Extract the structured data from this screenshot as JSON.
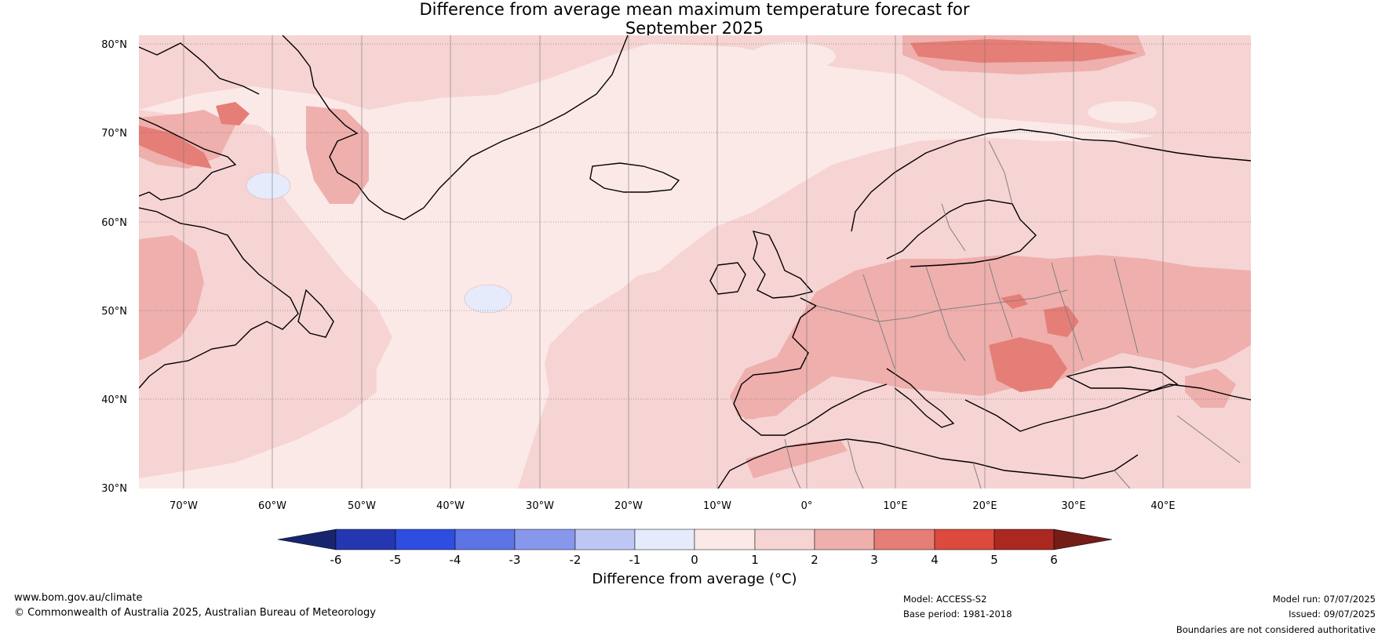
{
  "title": {
    "line1": "Difference from average mean maximum temperature forecast for",
    "line2": "September 2025"
  },
  "map": {
    "lat_labels": [
      "80°N",
      "70°N",
      "60°N",
      "50°N",
      "40°N",
      "30°N"
    ],
    "lon_labels": [
      "70°W",
      "60°W",
      "50°W",
      "40°W",
      "30°W",
      "20°W",
      "10°W",
      "0°",
      "10°E",
      "20°E",
      "30°E",
      "40°E"
    ],
    "lat_range": [
      30,
      81
    ],
    "lon_range": [
      -75,
      50
    ],
    "coastline_color": "#000000",
    "border_color": "#808080"
  },
  "colorbar": {
    "title": "Difference from average (°C)",
    "ticks": [
      "-6",
      "-5",
      "-4",
      "-3",
      "-2",
      "-1",
      "0",
      "1",
      "2",
      "3",
      "4",
      "5",
      "6"
    ],
    "colors": {
      "below_-6": "#17256e",
      "-6_-5": "#2537b0",
      "-5_-4": "#2f4ddf",
      "-4_-3": "#5c74e6",
      "-3_-2": "#8798ec",
      "-2_-1": "#bec7f4",
      "-1_0": "#e6ebfb",
      "0_1": "#fbe9e8",
      "1_2": "#f6d4d3",
      "2_3": "#eeafad",
      "3_4": "#e57e77",
      "4_5": "#dc4a3d",
      "5_6": "#aa2820",
      "above_6": "#741c18"
    }
  },
  "footer": {
    "website": "www.bom.gov.au/climate",
    "copyright": "© Commonwealth of Australia 2025, Australian Bureau of Meteorology",
    "model": "Model: ACCESS-S2",
    "base_period": "Base period: 1981-2018",
    "model_run": "Model run: 07/07/2025",
    "issued": "Issued: 09/07/2025",
    "disclaimer": "Boundaries are not considered authoritative"
  }
}
